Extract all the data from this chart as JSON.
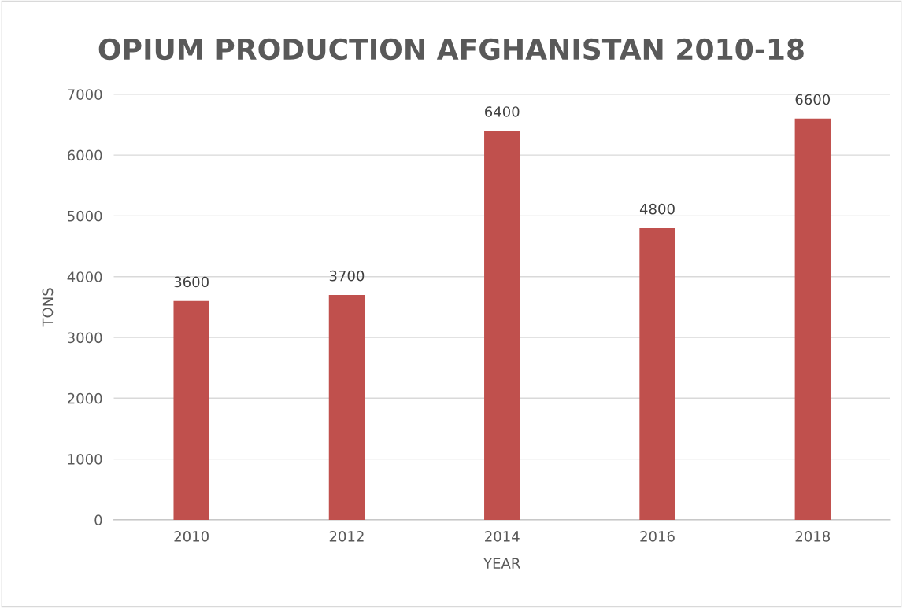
{
  "chart_data": {
    "type": "bar",
    "title": "OPIUM PRODUCTION AFGHANISTAN 2010-18",
    "xlabel": "YEAR",
    "ylabel": "TONS",
    "categories": [
      "2010",
      "2012",
      "2014",
      "2016",
      "2018"
    ],
    "values": [
      3600,
      3700,
      6400,
      4800,
      6600
    ],
    "color": "#c0504d",
    "ylim": [
      0,
      7000
    ],
    "yticks": [
      0,
      1000,
      2000,
      3000,
      4000,
      5000,
      6000,
      7000
    ],
    "grid": "y",
    "data_labels": true
  }
}
